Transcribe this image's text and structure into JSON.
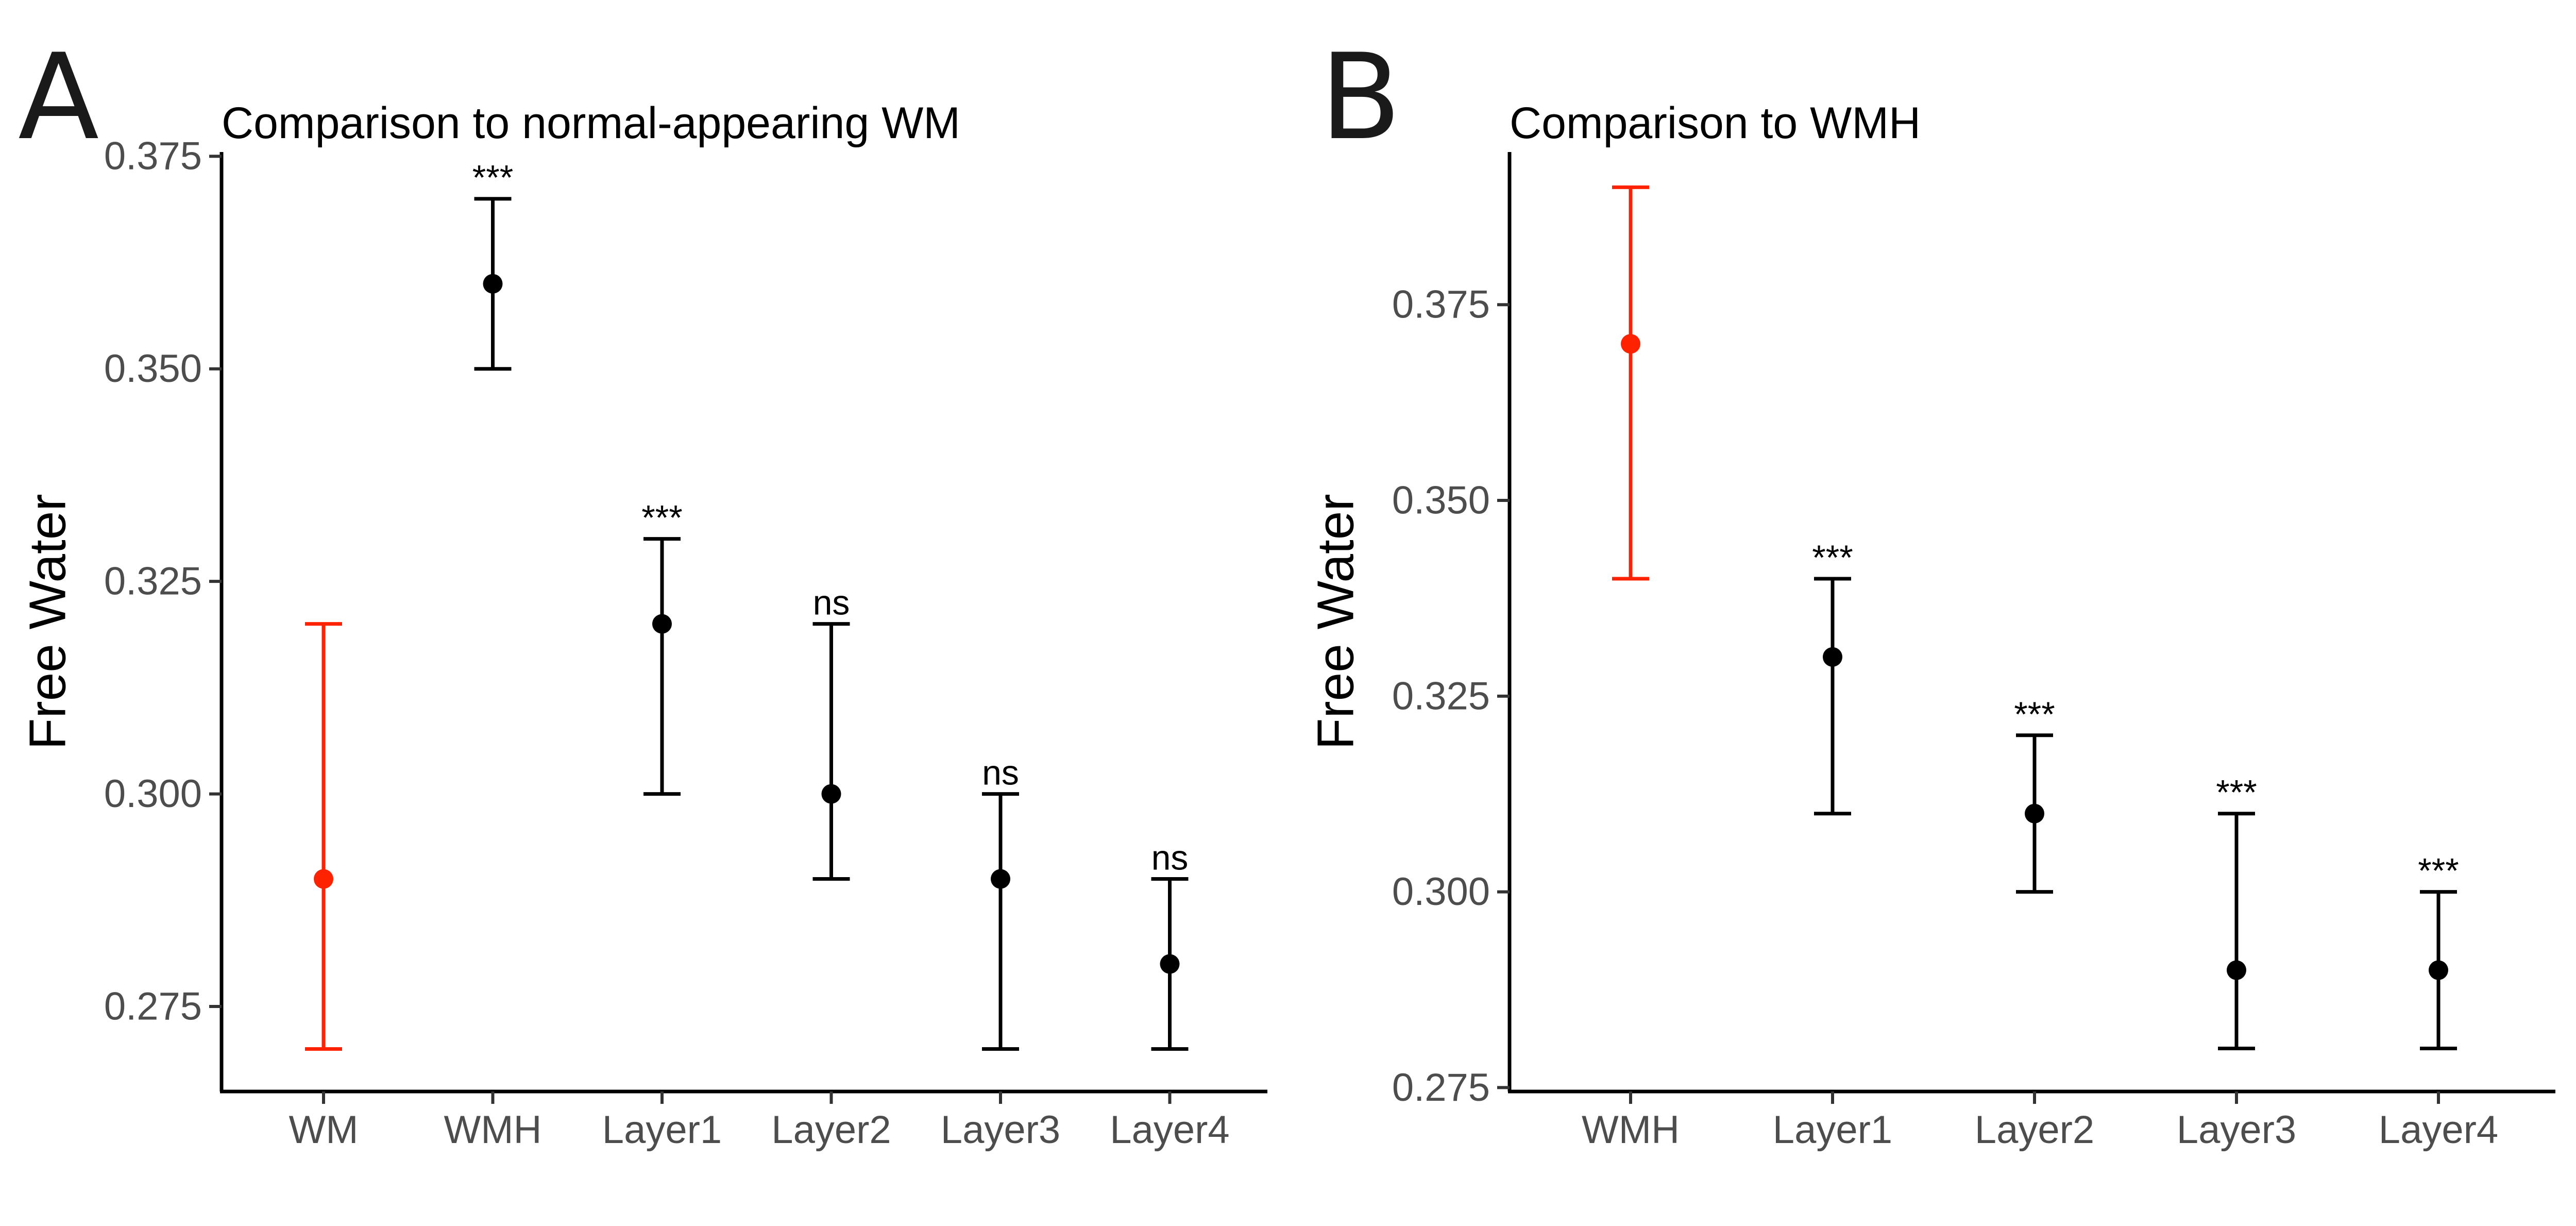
{
  "colors": {
    "reference": "#ff2200",
    "default": "#000000"
  },
  "chart_data": [
    {
      "type": "errorbar",
      "panel_label": "A",
      "title": "Comparison to normal-appearing WM",
      "xlabel": "",
      "ylabel": "Free Water",
      "ylim": [
        0.265,
        0.3755
      ],
      "yticks": [
        0.275,
        0.3,
        0.325,
        0.35,
        0.375
      ],
      "ytick_labels": [
        "0.275",
        "0.300",
        "0.325",
        "0.350",
        "0.375"
      ],
      "categories": [
        "WM",
        "WMH",
        "Layer1",
        "Layer2",
        "Layer3",
        "Layer4"
      ],
      "mean": [
        0.29,
        0.36,
        0.32,
        0.3,
        0.29,
        0.28
      ],
      "lower": [
        0.27,
        0.35,
        0.3,
        0.29,
        0.27,
        0.27
      ],
      "upper": [
        0.32,
        0.37,
        0.33,
        0.32,
        0.3,
        0.29
      ],
      "significance": [
        "",
        "***",
        "***",
        "ns",
        "ns",
        "ns"
      ],
      "reference_index": 0
    },
    {
      "type": "errorbar",
      "panel_label": "B",
      "title": "Comparison to WMH",
      "xlabel": "",
      "ylabel": "Free Water",
      "ylim": [
        0.2745,
        0.3945
      ],
      "yticks": [
        0.275,
        0.3,
        0.325,
        0.35,
        0.375
      ],
      "ytick_labels": [
        "0.275",
        "0.300",
        "0.325",
        "0.350",
        "0.375"
      ],
      "categories": [
        "WMH",
        "Layer1",
        "Layer2",
        "Layer3",
        "Layer4"
      ],
      "mean": [
        0.37,
        0.33,
        0.31,
        0.29,
        0.29
      ],
      "lower": [
        0.34,
        0.31,
        0.3,
        0.28,
        0.28
      ],
      "upper": [
        0.39,
        0.34,
        0.32,
        0.31,
        0.3
      ],
      "significance": [
        "",
        "***",
        "***",
        "***",
        "***"
      ],
      "reference_index": 0
    }
  ]
}
